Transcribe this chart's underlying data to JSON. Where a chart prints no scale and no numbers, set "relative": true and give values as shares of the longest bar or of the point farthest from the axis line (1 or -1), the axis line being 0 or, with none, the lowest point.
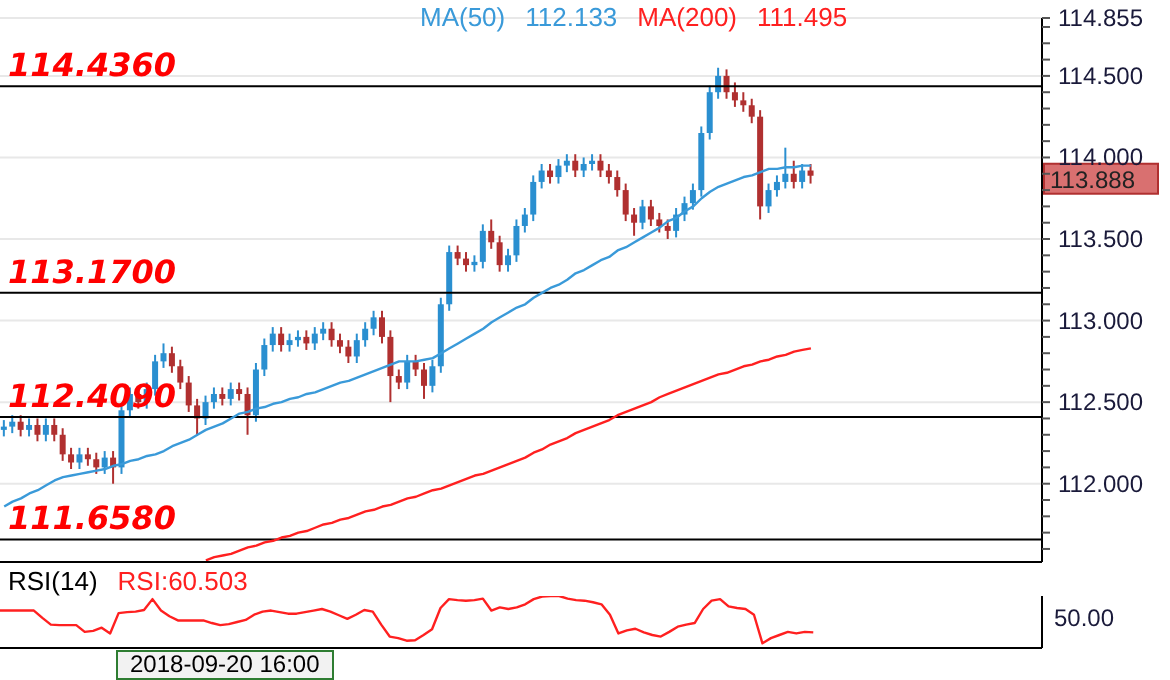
{
  "chart_data": [
    {
      "type": "candlestick",
      "legend": "top",
      "grid": "y",
      "tick_labels": "y",
      "categories": [
        null,
        null,
        null,
        null,
        null,
        null,
        null,
        null,
        null,
        null,
        null,
        null,
        null,
        null,
        null,
        null,
        null,
        null,
        null,
        null,
        null,
        null,
        null,
        null,
        null,
        null,
        null,
        null,
        null,
        null,
        null,
        null,
        null,
        null,
        null,
        null,
        null,
        null,
        null,
        null,
        null,
        null,
        null,
        null,
        null,
        null,
        null,
        null,
        null,
        null,
        null,
        null,
        null,
        null,
        null,
        null,
        null,
        null,
        null,
        null,
        null,
        null,
        null,
        null,
        null,
        null,
        null,
        null,
        null,
        null,
        null,
        null,
        null,
        null,
        null,
        null,
        null,
        null,
        null,
        null,
        null,
        null,
        null,
        null,
        null,
        null,
        null,
        null,
        null,
        null,
        null,
        null,
        null,
        null,
        null,
        null,
        null,
        null,
        null,
        null,
        null,
        null,
        null,
        null,
        null,
        null,
        null,
        null,
        null,
        null,
        null,
        null,
        null,
        null,
        null,
        null,
        null,
        null,
        null,
        null,
        null,
        null,
        null,
        null
      ],
      "ohlc": [
        [
          112.33,
          112.39,
          112.29,
          112.35
        ],
        [
          112.35,
          112.42,
          112.31,
          112.38
        ],
        [
          112.38,
          112.42,
          112.29,
          112.33
        ],
        [
          112.33,
          112.4,
          112.29,
          112.36
        ],
        [
          112.36,
          112.4,
          112.26,
          112.3
        ],
        [
          112.3,
          112.4,
          112.26,
          112.36
        ],
        [
          112.36,
          112.4,
          112.26,
          112.3
        ],
        [
          112.3,
          112.34,
          112.14,
          112.18
        ],
        [
          112.18,
          112.22,
          112.09,
          112.13
        ],
        [
          112.13,
          112.22,
          112.09,
          112.18
        ],
        [
          112.18,
          112.22,
          112.11,
          112.15
        ],
        [
          112.15,
          112.19,
          112.06,
          112.1
        ],
        [
          112.1,
          112.2,
          112.06,
          112.16
        ],
        [
          112.16,
          112.2,
          112.0,
          112.1
        ],
        [
          112.1,
          112.49,
          112.06,
          112.45
        ],
        [
          112.45,
          112.59,
          112.41,
          112.55
        ],
        [
          112.55,
          112.59,
          112.46,
          112.5
        ],
        [
          112.5,
          112.62,
          112.46,
          112.58
        ],
        [
          112.58,
          112.79,
          112.54,
          112.75
        ],
        [
          112.75,
          112.86,
          112.71,
          112.8
        ],
        [
          112.8,
          112.84,
          112.68,
          112.72
        ],
        [
          112.72,
          112.76,
          112.58,
          112.62
        ],
        [
          112.62,
          112.66,
          112.44,
          112.48
        ],
        [
          112.48,
          112.52,
          112.3,
          112.4
        ],
        [
          112.4,
          112.54,
          112.36,
          112.5
        ],
        [
          112.5,
          112.59,
          112.46,
          112.55
        ],
        [
          112.55,
          112.59,
          112.48,
          112.52
        ],
        [
          112.52,
          112.62,
          112.48,
          112.58
        ],
        [
          112.58,
          112.62,
          112.51,
          112.55
        ],
        [
          112.55,
          112.59,
          112.3,
          112.42
        ],
        [
          112.42,
          112.74,
          112.38,
          112.7
        ],
        [
          112.7,
          112.89,
          112.66,
          112.85
        ],
        [
          112.85,
          112.96,
          112.81,
          112.92
        ],
        [
          112.92,
          112.96,
          112.81,
          112.85
        ],
        [
          112.85,
          112.92,
          112.81,
          112.88
        ],
        [
          112.88,
          112.94,
          112.84,
          112.9
        ],
        [
          112.9,
          112.94,
          112.82,
          112.86
        ],
        [
          112.86,
          112.96,
          112.82,
          112.92
        ],
        [
          112.92,
          112.99,
          112.88,
          112.95
        ],
        [
          112.95,
          112.99,
          112.84,
          112.88
        ],
        [
          112.88,
          112.92,
          112.8,
          112.84
        ],
        [
          112.84,
          112.88,
          112.74,
          112.78
        ],
        [
          112.78,
          112.92,
          112.74,
          112.88
        ],
        [
          112.88,
          112.99,
          112.84,
          112.95
        ],
        [
          112.95,
          113.06,
          112.91,
          113.02
        ],
        [
          113.02,
          113.06,
          112.86,
          112.9
        ],
        [
          112.9,
          112.94,
          112.5,
          112.66
        ],
        [
          112.66,
          112.7,
          112.58,
          112.62
        ],
        [
          112.62,
          112.79,
          112.58,
          112.75
        ],
        [
          112.75,
          112.79,
          112.66,
          112.7
        ],
        [
          112.7,
          112.74,
          112.52,
          112.6
        ],
        [
          112.6,
          112.76,
          112.56,
          112.72
        ],
        [
          112.72,
          113.14,
          112.68,
          113.1
        ],
        [
          113.1,
          113.46,
          113.06,
          113.42
        ],
        [
          113.42,
          113.46,
          113.34,
          113.38
        ],
        [
          113.38,
          113.42,
          113.3,
          113.34
        ],
        [
          113.34,
          113.4,
          113.3,
          113.36
        ],
        [
          113.36,
          113.59,
          113.32,
          113.55
        ],
        [
          113.55,
          113.62,
          113.44,
          113.48
        ],
        [
          113.48,
          113.52,
          113.3,
          113.34
        ],
        [
          113.34,
          113.44,
          113.3,
          113.4
        ],
        [
          113.4,
          113.62,
          113.36,
          113.58
        ],
        [
          113.58,
          113.69,
          113.54,
          113.65
        ],
        [
          113.65,
          113.89,
          113.61,
          113.85
        ],
        [
          113.85,
          113.96,
          113.81,
          113.92
        ],
        [
          113.92,
          113.96,
          113.84,
          113.88
        ],
        [
          113.88,
          113.99,
          113.84,
          113.95
        ],
        [
          113.95,
          114.02,
          113.91,
          113.98
        ],
        [
          113.98,
          114.02,
          113.88,
          113.92
        ],
        [
          113.92,
          114.0,
          113.88,
          113.96
        ],
        [
          113.96,
          114.02,
          113.92,
          113.98
        ],
        [
          113.98,
          114.02,
          113.88,
          113.92
        ],
        [
          113.92,
          113.96,
          113.84,
          113.88
        ],
        [
          113.88,
          113.92,
          113.76,
          113.8
        ],
        [
          113.8,
          113.84,
          113.61,
          113.65
        ],
        [
          113.65,
          113.69,
          113.52,
          113.6
        ],
        [
          113.6,
          113.74,
          113.56,
          113.7
        ],
        [
          113.7,
          113.74,
          113.58,
          113.62
        ],
        [
          113.62,
          113.66,
          113.54,
          113.58
        ],
        [
          113.58,
          113.62,
          113.5,
          113.55
        ],
        [
          113.55,
          113.69,
          113.51,
          113.65
        ],
        [
          113.65,
          113.76,
          113.61,
          113.72
        ],
        [
          113.72,
          113.84,
          113.68,
          113.8
        ],
        [
          113.8,
          114.19,
          113.76,
          114.15
        ],
        [
          114.15,
          114.44,
          114.11,
          114.4
        ],
        [
          114.4,
          114.55,
          114.36,
          114.5
        ],
        [
          114.5,
          114.54,
          114.36,
          114.4
        ],
        [
          114.4,
          114.46,
          114.31,
          114.35
        ],
        [
          114.35,
          114.4,
          114.28,
          114.32
        ],
        [
          114.32,
          114.36,
          114.21,
          114.25
        ],
        [
          114.25,
          114.29,
          113.62,
          113.7
        ],
        [
          113.7,
          113.84,
          113.66,
          113.8
        ],
        [
          113.8,
          113.89,
          113.76,
          113.85
        ],
        [
          113.85,
          114.06,
          113.81,
          113.9
        ],
        [
          113.9,
          113.98,
          113.81,
          113.85
        ],
        [
          113.85,
          113.96,
          113.81,
          113.92
        ],
        [
          113.92,
          113.96,
          113.84,
          113.888
        ],
        null,
        null,
        null,
        null,
        null,
        null,
        null,
        null,
        null,
        null,
        null,
        null,
        null,
        null,
        null,
        null,
        null,
        null,
        null,
        null,
        null,
        null,
        null,
        null,
        null,
        null,
        null
      ],
      "colors": [
        "#2a8fd0",
        "#2a8fd0",
        "#b03030",
        "#2a8fd0",
        "#b03030",
        "#2a8fd0",
        "#b03030",
        "#b03030",
        "#b03030",
        "#2a8fd0",
        "#b03030",
        "#b03030",
        "#2a8fd0",
        "#b03030",
        "#2a8fd0",
        "#2a8fd0",
        "#b03030",
        "#2a8fd0",
        "#2a8fd0",
        "#2a8fd0",
        "#b03030",
        "#b03030",
        "#b03030",
        "#b03030",
        "#2a8fd0",
        "#2a8fd0",
        "#b03030",
        "#2a8fd0",
        "#b03030",
        "#b03030",
        "#2a8fd0",
        "#2a8fd0",
        "#2a8fd0",
        "#b03030",
        "#2a8fd0",
        "#2a8fd0",
        "#b03030",
        "#2a8fd0",
        "#2a8fd0",
        "#b03030",
        "#b03030",
        "#b03030",
        "#2a8fd0",
        "#2a8fd0",
        "#2a8fd0",
        "#b03030",
        "#b03030",
        "#b03030",
        "#2a8fd0",
        "#b03030",
        "#b03030",
        "#2a8fd0",
        "#2a8fd0",
        "#2a8fd0",
        "#b03030",
        "#b03030",
        "#2a8fd0",
        "#2a8fd0",
        "#b03030",
        "#b03030",
        "#2a8fd0",
        "#2a8fd0",
        "#2a8fd0",
        "#2a8fd0",
        "#2a8fd0",
        "#b03030",
        "#2a8fd0",
        "#2a8fd0",
        "#b03030",
        "#2a8fd0",
        "#2a8fd0",
        "#b03030",
        "#b03030",
        "#b03030",
        "#b03030",
        "#b03030",
        "#2a8fd0",
        "#b03030",
        "#b03030",
        "#b03030",
        "#2a8fd0",
        "#2a8fd0",
        "#2a8fd0",
        "#2a8fd0",
        "#2a8fd0",
        "#2a8fd0",
        "#b03030",
        "#b03030",
        "#b03030",
        "#b03030",
        "#b03030",
        "#2a8fd0",
        "#2a8fd0",
        "#2a8fd0",
        "#b03030",
        "#2a8fd0",
        "#b03030",
        null,
        null,
        null,
        null,
        null,
        null,
        null,
        null,
        null,
        null,
        null,
        null,
        null,
        null,
        null,
        null,
        null,
        null,
        null,
        null,
        null,
        null,
        null,
        null,
        null,
        null,
        null
      ],
      "series": [
        {
          "type": "line",
          "name": "MA(50)",
          "color": "#3a9ad9",
          "values": [
            111.86,
            111.89,
            111.91,
            111.94,
            111.96,
            111.99,
            112.02,
            112.04,
            112.05,
            112.06,
            112.07,
            112.08,
            112.09,
            112.11,
            112.12,
            112.14,
            112.15,
            112.17,
            112.18,
            112.2,
            112.23,
            112.25,
            112.27,
            112.3,
            112.33,
            112.35,
            112.37,
            112.4,
            112.43,
            112.44,
            112.46,
            112.47,
            112.49,
            112.5,
            112.52,
            112.53,
            112.55,
            112.56,
            112.58,
            112.6,
            112.62,
            112.63,
            112.65,
            112.67,
            112.69,
            112.71,
            112.73,
            112.75,
            112.75,
            112.75,
            112.76,
            112.77,
            112.8,
            112.83,
            112.86,
            112.89,
            112.92,
            112.95,
            112.99,
            113.02,
            113.05,
            113.08,
            113.1,
            113.14,
            113.17,
            113.2,
            113.22,
            113.25,
            113.29,
            113.31,
            113.34,
            113.37,
            113.39,
            113.43,
            113.45,
            113.48,
            113.51,
            113.54,
            113.57,
            113.61,
            113.63,
            113.67,
            113.7,
            113.75,
            113.79,
            113.82,
            113.84,
            113.86,
            113.88,
            113.89,
            113.91,
            113.93,
            113.93,
            113.94,
            113.94,
            113.95,
            113.95,
            null,
            null,
            null,
            null,
            null,
            null,
            null,
            null,
            null,
            null,
            null,
            null,
            null,
            null,
            null,
            null,
            null,
            null,
            null,
            null,
            null,
            null,
            null,
            null,
            null,
            null,
            null
          ]
        },
        {
          "type": "line",
          "name": "MA(200)",
          "color": "#ff2020",
          "values": [
            null,
            null,
            null,
            null,
            null,
            null,
            null,
            null,
            null,
            null,
            null,
            null,
            null,
            null,
            null,
            null,
            null,
            null,
            null,
            null,
            null,
            null,
            null,
            null,
            111.53,
            111.55,
            111.56,
            111.57,
            111.59,
            111.61,
            111.62,
            111.64,
            111.65,
            111.67,
            111.68,
            111.7,
            111.71,
            111.73,
            111.75,
            111.76,
            111.78,
            111.79,
            111.81,
            111.83,
            111.84,
            111.86,
            111.87,
            111.89,
            111.91,
            111.92,
            111.94,
            111.96,
            111.97,
            111.99,
            112.01,
            112.03,
            112.05,
            112.06,
            112.08,
            112.1,
            112.12,
            112.14,
            112.16,
            112.19,
            112.21,
            112.24,
            112.26,
            112.28,
            112.31,
            112.33,
            112.35,
            112.37,
            112.39,
            112.42,
            112.44,
            112.46,
            112.48,
            112.5,
            112.53,
            112.55,
            112.57,
            112.59,
            112.61,
            112.63,
            112.65,
            112.67,
            112.68,
            112.7,
            112.72,
            112.73,
            112.75,
            112.76,
            112.78,
            112.79,
            112.81,
            112.82,
            112.83,
            null,
            null,
            null,
            null,
            null,
            null,
            null,
            null,
            null,
            null,
            null,
            null,
            null,
            null,
            null,
            null,
            null,
            null,
            null,
            null,
            null,
            null,
            null,
            null,
            null,
            null,
            null
          ]
        }
      ],
      "ylim": [
        111.52,
        114.855
      ],
      "yticks": [
        {
          "value": 111.6,
          "label": null
        },
        {
          "value": 111.7,
          "label": null
        },
        {
          "value": 111.8,
          "label": null
        },
        {
          "value": 111.9,
          "label": null
        },
        {
          "value": 112,
          "label": "112.000"
        },
        {
          "value": 112.1,
          "label": null
        },
        {
          "value": 112.2,
          "label": null
        },
        {
          "value": 112.3,
          "label": null
        },
        {
          "value": 112.4,
          "label": null
        },
        {
          "value": 112.5,
          "label": "112.500"
        },
        {
          "value": 112.6,
          "label": null
        },
        {
          "value": 112.7,
          "label": null
        },
        {
          "value": 112.8,
          "label": null
        },
        {
          "value": 112.9,
          "label": null
        },
        {
          "value": 113,
          "label": "113.000"
        },
        {
          "value": 113.1,
          "label": null
        },
        {
          "value": 113.2,
          "label": null
        },
        {
          "value": 113.3,
          "label": null
        },
        {
          "value": 113.4,
          "label": null
        },
        {
          "value": 113.5,
          "label": "113.500"
        },
        {
          "value": 113.6,
          "label": null
        },
        {
          "value": 113.7,
          "label": null
        },
        {
          "value": 113.8,
          "label": null
        },
        {
          "value": 113.9,
          "label": null
        },
        {
          "value": 114,
          "label": "114.000"
        },
        {
          "value": 114.1,
          "label": null
        },
        {
          "value": 114.2,
          "label": null
        },
        {
          "value": 114.3,
          "label": null
        },
        {
          "value": 114.4,
          "label": null
        },
        {
          "value": 114.5,
          "label": "114.500"
        },
        {
          "value": 114.6,
          "label": null
        },
        {
          "value": 114.7,
          "label": null
        },
        {
          "value": 114.8,
          "label": null
        },
        114.855
      ],
      "ref_lines": [
        {
          "axis": "y",
          "value": 114.436,
          "label": "114.4360",
          "color": "#000000"
        },
        {
          "axis": "y",
          "value": 113.17,
          "label": "113.1700",
          "color": "#000000"
        },
        {
          "axis": "y",
          "value": 112.409,
          "label": "112.4090",
          "color": "#000000"
        },
        {
          "axis": "y",
          "value": 111.658,
          "label": "111.6580",
          "color": "#000000"
        }
      ],
      "annotations": [
        "112.133",
        "111.495",
        "113.888"
      ]
    },
    {
      "type": "line",
      "title": "RSI(14)",
      "relative": true,
      "tick_labels": false,
      "categories": [
        null,
        null,
        null,
        null,
        null,
        null,
        null,
        null,
        null,
        null,
        null,
        null,
        null,
        null,
        null,
        null,
        null,
        null,
        null,
        null,
        null,
        null,
        null,
        null,
        null,
        null,
        null,
        null,
        null,
        null,
        null,
        null,
        null,
        null,
        null,
        null,
        null,
        null,
        null,
        null,
        null,
        null,
        null,
        null,
        null,
        null,
        null,
        null,
        null,
        null,
        null,
        null,
        null,
        null,
        null,
        null,
        null,
        null,
        null,
        null,
        null,
        null,
        null,
        null,
        null,
        null,
        null,
        null,
        null,
        null,
        null,
        null,
        null,
        null,
        null,
        null,
        null,
        null,
        null,
        null,
        null,
        null,
        null,
        null,
        null,
        null,
        null,
        null,
        null,
        null,
        null,
        null,
        null,
        null,
        null,
        null,
        null,
        null,
        null,
        null,
        null,
        null,
        null,
        null,
        null,
        null,
        null,
        null,
        null,
        null,
        null,
        null,
        null,
        null,
        null,
        null,
        null,
        null,
        null,
        null,
        null,
        null,
        null,
        null
      ],
      "series": [
        {
          "type": "line",
          "color": "#ff2020",
          "values": [
            0.72,
            0.72,
            0.72,
            0.72,
            0.72,
            0.58,
            0.45,
            0.44,
            0.44,
            0.44,
            0.31,
            0.33,
            0.39,
            0.28,
            0.67,
            0.69,
            0.7,
            0.73,
            0.94,
            0.72,
            0.61,
            0.53,
            0.53,
            0.53,
            0.53,
            0.48,
            0.44,
            0.46,
            0.5,
            0.54,
            0.64,
            0.7,
            0.72,
            0.69,
            0.66,
            0.66,
            0.69,
            0.72,
            0.75,
            0.7,
            0.63,
            0.56,
            0.64,
            0.73,
            0.7,
            0.45,
            0.22,
            0.19,
            0.14,
            0.15,
            0.25,
            0.36,
            0.77,
            0.94,
            0.92,
            0.91,
            0.92,
            0.95,
            0.72,
            0.78,
            0.75,
            0.78,
            0.84,
            0.94,
            0.99,
            1,
            1,
            0.95,
            0.92,
            0.91,
            0.88,
            0.84,
            0.64,
            0.28,
            0.34,
            0.37,
            0.3,
            0.25,
            0.22,
            0.31,
            0.41,
            0.45,
            0.48,
            0.75,
            0.91,
            0.94,
            0.8,
            0.77,
            0.75,
            0.64,
            0.09,
            0.19,
            0.25,
            0.31,
            0.28,
            0.31,
            0.3,
            null,
            null,
            null,
            null,
            null,
            null,
            null,
            null,
            null,
            null,
            null,
            null,
            null,
            null,
            null,
            null,
            null,
            null,
            null,
            null,
            null,
            null,
            null,
            null,
            null,
            null,
            null
          ]
        }
      ],
      "annotations": [
        "RSI:60.503",
        "50.00",
        "2018-09-20 16:00"
      ]
    }
  ]
}
